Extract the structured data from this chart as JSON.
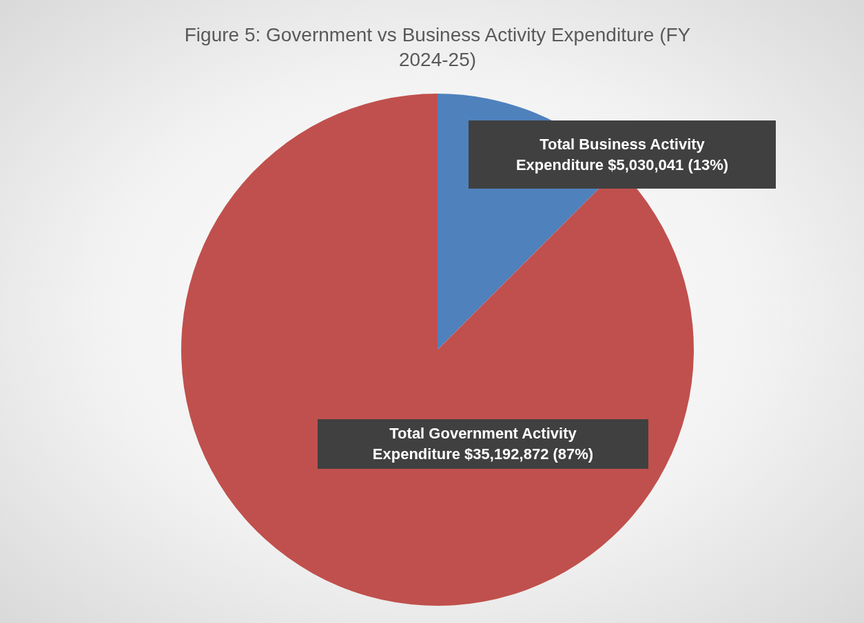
{
  "chart_data": {
    "type": "pie",
    "title": "Figure 5: Government vs Business Activity Expenditure (FY 2024-25)",
    "categories": [
      "Total Business Activity Expenditure",
      "Total Government Activity Expenditure"
    ],
    "values": [
      5030041,
      35192872
    ],
    "colors": [
      "#4f81bd",
      "#c0504d"
    ],
    "value_labels": [
      "$5,030,041  (13%)",
      "$35,192,872  (87%)"
    ]
  }
}
